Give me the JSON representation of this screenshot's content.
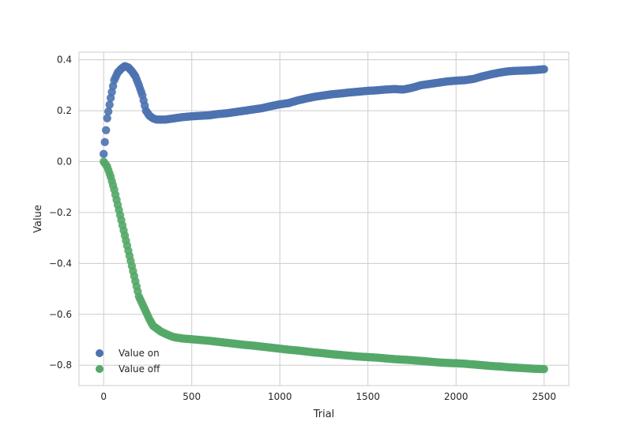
{
  "chart_data": {
    "type": "scatter",
    "xlabel": "Trial",
    "ylabel": "Value",
    "xlim": [
      -140,
      2640
    ],
    "ylim": [
      -0.88,
      0.43
    ],
    "x_ticks": [
      0,
      500,
      1000,
      1500,
      2000,
      2500
    ],
    "x_tick_labels": [
      "0",
      "500",
      "1000",
      "1500",
      "2000",
      "2500"
    ],
    "y_ticks": [
      0.4,
      0.2,
      0.0,
      -0.2,
      -0.4,
      -0.6,
      -0.8
    ],
    "y_tick_labels": [
      "0.4",
      "0.2",
      "0.0",
      "−0.2",
      "−0.4",
      "−0.6",
      "−0.8"
    ],
    "grid": true,
    "legend_position": "lower-left",
    "series": [
      {
        "name": "Value on",
        "color": "#4c72b0",
        "x": [
          0,
          20,
          40,
          60,
          80,
          100,
          120,
          140,
          160,
          180,
          200,
          220,
          240,
          260,
          280,
          300,
          325,
          350,
          400,
          450,
          500,
          550,
          600,
          650,
          700,
          750,
          800,
          850,
          900,
          950,
          1000,
          1050,
          1100,
          1150,
          1200,
          1250,
          1300,
          1350,
          1400,
          1450,
          1500,
          1550,
          1600,
          1650,
          1700,
          1750,
          1800,
          1850,
          1900,
          1950,
          2000,
          2050,
          2100,
          2150,
          2200,
          2250,
          2300,
          2350,
          2400,
          2450,
          2500
        ],
        "y": [
          0.03,
          0.17,
          0.25,
          0.32,
          0.35,
          0.365,
          0.375,
          0.37,
          0.355,
          0.335,
          0.3,
          0.26,
          0.2,
          0.18,
          0.17,
          0.165,
          0.165,
          0.165,
          0.17,
          0.175,
          0.178,
          0.18,
          0.182,
          0.187,
          0.19,
          0.195,
          0.2,
          0.205,
          0.21,
          0.218,
          0.225,
          0.23,
          0.24,
          0.248,
          0.255,
          0.26,
          0.265,
          0.268,
          0.272,
          0.275,
          0.278,
          0.28,
          0.283,
          0.285,
          0.283,
          0.29,
          0.3,
          0.305,
          0.31,
          0.315,
          0.318,
          0.32,
          0.325,
          0.335,
          0.343,
          0.35,
          0.355,
          0.357,
          0.358,
          0.36,
          0.363
        ]
      },
      {
        "name": "Value off",
        "color": "#55a868",
        "x": [
          0,
          20,
          40,
          60,
          80,
          100,
          120,
          140,
          160,
          180,
          200,
          220,
          240,
          260,
          280,
          300,
          325,
          350,
          375,
          400,
          450,
          500,
          550,
          600,
          650,
          700,
          750,
          800,
          850,
          900,
          950,
          1000,
          1050,
          1100,
          1150,
          1200,
          1250,
          1300,
          1350,
          1400,
          1450,
          1500,
          1550,
          1600,
          1650,
          1700,
          1750,
          1800,
          1850,
          1900,
          1950,
          2000,
          2050,
          2100,
          2150,
          2200,
          2250,
          2300,
          2350,
          2400,
          2450,
          2500
        ],
        "y": [
          0.0,
          -0.02,
          -0.06,
          -0.11,
          -0.17,
          -0.23,
          -0.29,
          -0.35,
          -0.41,
          -0.47,
          -0.53,
          -0.56,
          -0.59,
          -0.62,
          -0.645,
          -0.655,
          -0.668,
          -0.676,
          -0.684,
          -0.69,
          -0.695,
          -0.698,
          -0.701,
          -0.704,
          -0.708,
          -0.712,
          -0.716,
          -0.72,
          -0.723,
          -0.727,
          -0.731,
          -0.735,
          -0.739,
          -0.742,
          -0.746,
          -0.75,
          -0.753,
          -0.757,
          -0.76,
          -0.763,
          -0.766,
          -0.768,
          -0.77,
          -0.773,
          -0.776,
          -0.778,
          -0.78,
          -0.783,
          -0.786,
          -0.789,
          -0.791,
          -0.792,
          -0.794,
          -0.797,
          -0.8,
          -0.803,
          -0.805,
          -0.808,
          -0.81,
          -0.812,
          -0.814,
          -0.815
        ]
      }
    ]
  }
}
